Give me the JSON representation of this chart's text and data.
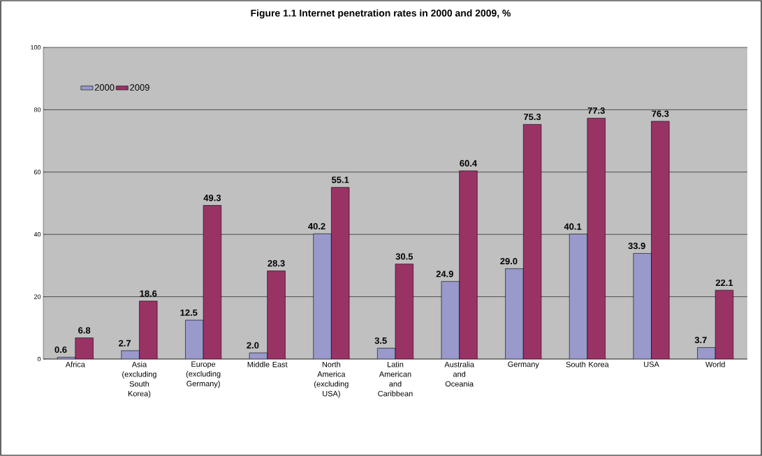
{
  "chart_data": {
    "type": "bar",
    "title": "Figure 1.1 Internet penetration rates  in 2000 and 2009, %",
    "categories": [
      "Africa",
      "Asia (excluding South Korea)",
      "Europe (excluding Germany)",
      "Middle East",
      "North America (excluding USA)",
      "Latin American and Caribbean",
      "Australia and Oceania",
      "Germany",
      "South Korea",
      "USA",
      "World"
    ],
    "series": [
      {
        "name": "2000",
        "color": "#9999cc",
        "values": [
          0.6,
          2.7,
          12.5,
          2.0,
          40.2,
          3.5,
          24.9,
          29.0,
          40.1,
          33.9,
          3.7
        ],
        "value_labels": [
          "0.6",
          "2.7",
          "12.5",
          "2.0",
          "40.2",
          "3.5",
          "24.9",
          "29.0",
          "40.1",
          "33.9",
          "3.7"
        ]
      },
      {
        "name": "2009",
        "color": "#993366",
        "values": [
          6.8,
          18.6,
          49.3,
          28.3,
          55.1,
          30.5,
          60.4,
          75.3,
          77.3,
          76.3,
          22.1
        ],
        "value_labels": [
          "6.8",
          "18.6",
          "49.3",
          "28.3",
          "55.1",
          "30.5",
          "60.4",
          "75.3",
          "77.3",
          "76.3",
          "22.1"
        ]
      }
    ],
    "ylim": [
      0,
      100
    ],
    "yticks": [
      0,
      20,
      40,
      60,
      80,
      100
    ],
    "grid": "y",
    "legend": "top left"
  }
}
